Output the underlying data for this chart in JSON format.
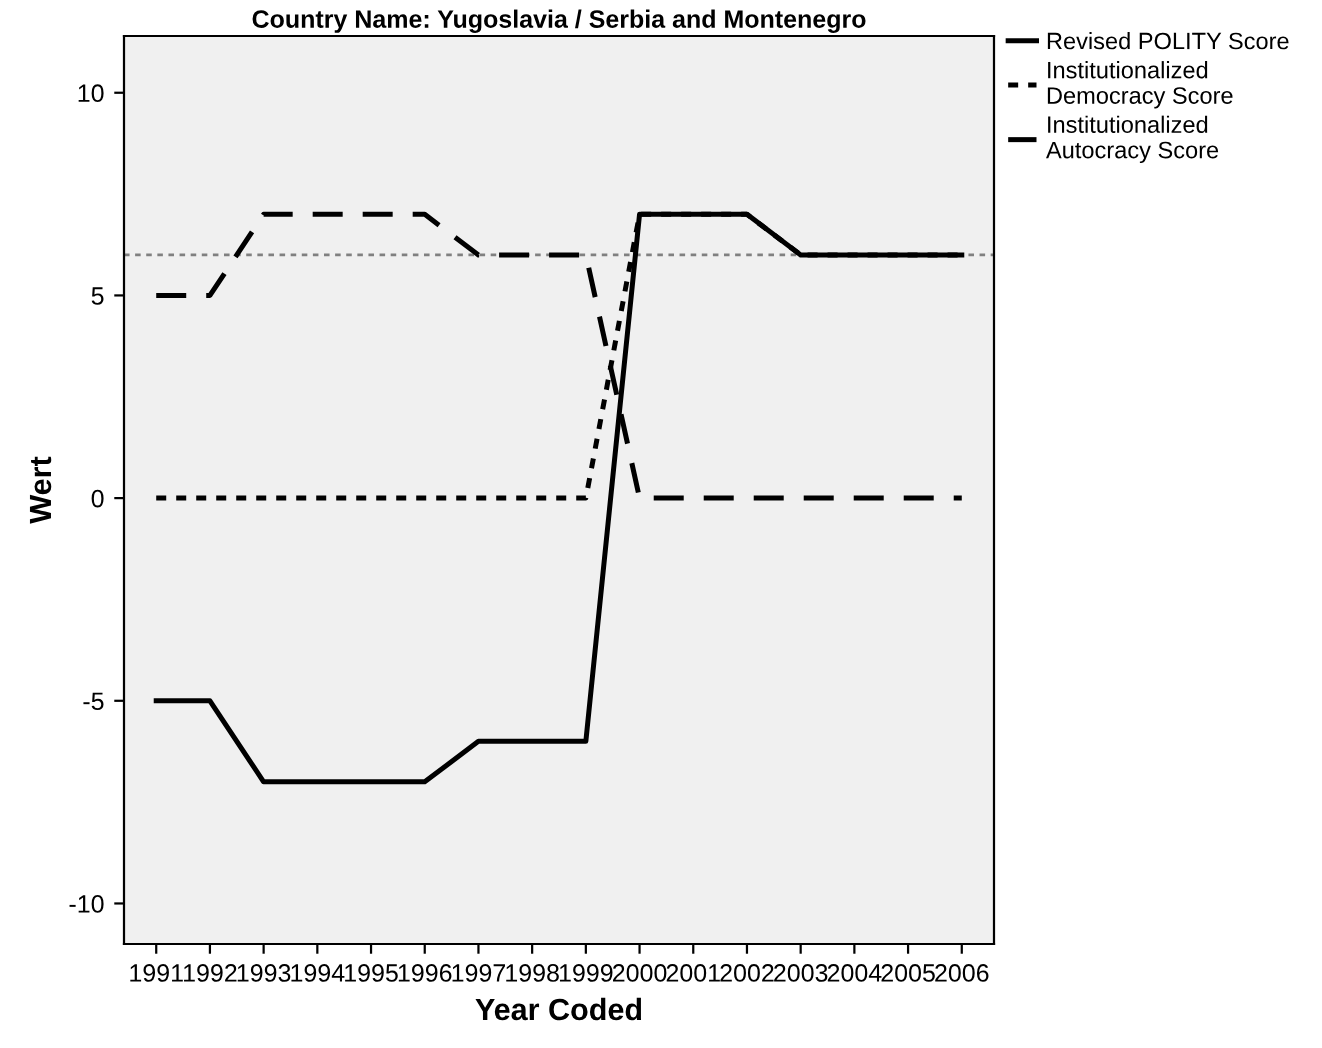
{
  "chart_data": {
    "type": "line",
    "title": "Country Name: Yugoslavia / Serbia and Montenegro",
    "xlabel": "Year Coded",
    "ylabel": "Wert",
    "categories": [
      "1991",
      "1992",
      "1993",
      "1994",
      "1995",
      "1996",
      "1997",
      "1998",
      "1999",
      "2000",
      "2001",
      "2002",
      "2003",
      "2004",
      "2005",
      "2006"
    ],
    "series": [
      {
        "name": "Revised POLITY Score",
        "color": "#000000",
        "line_style": "solid",
        "values": [
          -5,
          -5,
          -7,
          -7,
          -7,
          -7,
          -6,
          -6,
          -6,
          7,
          7,
          7,
          6,
          6,
          6,
          6
        ]
      },
      {
        "name": "Institutionalized\nDemocracy Score",
        "color": "#000000",
        "line_style": "dotted",
        "values": [
          0,
          0,
          0,
          0,
          0,
          0,
          0,
          0,
          0,
          7,
          7,
          7,
          6,
          6,
          6,
          6
        ]
      },
      {
        "name": "Institutionalized\nAutocracy Score",
        "color": "#000000",
        "line_style": "dashed",
        "values": [
          5,
          5,
          7,
          7,
          7,
          7,
          6,
          6,
          6,
          0,
          0,
          0,
          0,
          0,
          0,
          0
        ]
      }
    ],
    "ylim": [
      -11,
      11.4
    ],
    "yticks": [
      -10,
      -5,
      0,
      5,
      10
    ],
    "ref_lines": [
      {
        "axis": "y",
        "value": 6,
        "color": "#808080",
        "line_style": "dotted"
      }
    ],
    "grid": false,
    "legend": "top right",
    "marker": "none"
  }
}
